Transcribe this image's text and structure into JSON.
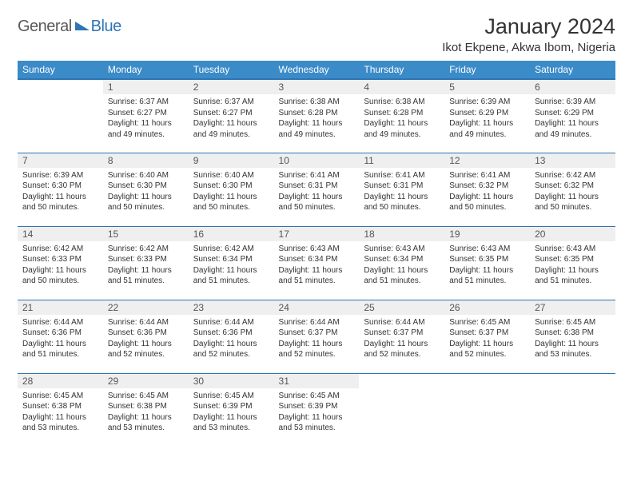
{
  "logo": {
    "general": "General",
    "blue": "Blue"
  },
  "title": "January 2024",
  "location": "Ikot Ekpene, Akwa Ibom, Nigeria",
  "colors": {
    "header_bg": "#3b8bc8",
    "header_text": "#ffffff",
    "daynum_bg": "#efefef",
    "border": "#2e75b6",
    "body_text": "#333333"
  },
  "weekdays": [
    "Sunday",
    "Monday",
    "Tuesday",
    "Wednesday",
    "Thursday",
    "Friday",
    "Saturday"
  ],
  "weeks": [
    [
      {
        "n": "",
        "sr": "",
        "ss": "",
        "dl": ""
      },
      {
        "n": "1",
        "sr": "Sunrise: 6:37 AM",
        "ss": "Sunset: 6:27 PM",
        "dl": "Daylight: 11 hours and 49 minutes."
      },
      {
        "n": "2",
        "sr": "Sunrise: 6:37 AM",
        "ss": "Sunset: 6:27 PM",
        "dl": "Daylight: 11 hours and 49 minutes."
      },
      {
        "n": "3",
        "sr": "Sunrise: 6:38 AM",
        "ss": "Sunset: 6:28 PM",
        "dl": "Daylight: 11 hours and 49 minutes."
      },
      {
        "n": "4",
        "sr": "Sunrise: 6:38 AM",
        "ss": "Sunset: 6:28 PM",
        "dl": "Daylight: 11 hours and 49 minutes."
      },
      {
        "n": "5",
        "sr": "Sunrise: 6:39 AM",
        "ss": "Sunset: 6:29 PM",
        "dl": "Daylight: 11 hours and 49 minutes."
      },
      {
        "n": "6",
        "sr": "Sunrise: 6:39 AM",
        "ss": "Sunset: 6:29 PM",
        "dl": "Daylight: 11 hours and 49 minutes."
      }
    ],
    [
      {
        "n": "7",
        "sr": "Sunrise: 6:39 AM",
        "ss": "Sunset: 6:30 PM",
        "dl": "Daylight: 11 hours and 50 minutes."
      },
      {
        "n": "8",
        "sr": "Sunrise: 6:40 AM",
        "ss": "Sunset: 6:30 PM",
        "dl": "Daylight: 11 hours and 50 minutes."
      },
      {
        "n": "9",
        "sr": "Sunrise: 6:40 AM",
        "ss": "Sunset: 6:30 PM",
        "dl": "Daylight: 11 hours and 50 minutes."
      },
      {
        "n": "10",
        "sr": "Sunrise: 6:41 AM",
        "ss": "Sunset: 6:31 PM",
        "dl": "Daylight: 11 hours and 50 minutes."
      },
      {
        "n": "11",
        "sr": "Sunrise: 6:41 AM",
        "ss": "Sunset: 6:31 PM",
        "dl": "Daylight: 11 hours and 50 minutes."
      },
      {
        "n": "12",
        "sr": "Sunrise: 6:41 AM",
        "ss": "Sunset: 6:32 PM",
        "dl": "Daylight: 11 hours and 50 minutes."
      },
      {
        "n": "13",
        "sr": "Sunrise: 6:42 AM",
        "ss": "Sunset: 6:32 PM",
        "dl": "Daylight: 11 hours and 50 minutes."
      }
    ],
    [
      {
        "n": "14",
        "sr": "Sunrise: 6:42 AM",
        "ss": "Sunset: 6:33 PM",
        "dl": "Daylight: 11 hours and 50 minutes."
      },
      {
        "n": "15",
        "sr": "Sunrise: 6:42 AM",
        "ss": "Sunset: 6:33 PM",
        "dl": "Daylight: 11 hours and 51 minutes."
      },
      {
        "n": "16",
        "sr": "Sunrise: 6:42 AM",
        "ss": "Sunset: 6:34 PM",
        "dl": "Daylight: 11 hours and 51 minutes."
      },
      {
        "n": "17",
        "sr": "Sunrise: 6:43 AM",
        "ss": "Sunset: 6:34 PM",
        "dl": "Daylight: 11 hours and 51 minutes."
      },
      {
        "n": "18",
        "sr": "Sunrise: 6:43 AM",
        "ss": "Sunset: 6:34 PM",
        "dl": "Daylight: 11 hours and 51 minutes."
      },
      {
        "n": "19",
        "sr": "Sunrise: 6:43 AM",
        "ss": "Sunset: 6:35 PM",
        "dl": "Daylight: 11 hours and 51 minutes."
      },
      {
        "n": "20",
        "sr": "Sunrise: 6:43 AM",
        "ss": "Sunset: 6:35 PM",
        "dl": "Daylight: 11 hours and 51 minutes."
      }
    ],
    [
      {
        "n": "21",
        "sr": "Sunrise: 6:44 AM",
        "ss": "Sunset: 6:36 PM",
        "dl": "Daylight: 11 hours and 51 minutes."
      },
      {
        "n": "22",
        "sr": "Sunrise: 6:44 AM",
        "ss": "Sunset: 6:36 PM",
        "dl": "Daylight: 11 hours and 52 minutes."
      },
      {
        "n": "23",
        "sr": "Sunrise: 6:44 AM",
        "ss": "Sunset: 6:36 PM",
        "dl": "Daylight: 11 hours and 52 minutes."
      },
      {
        "n": "24",
        "sr": "Sunrise: 6:44 AM",
        "ss": "Sunset: 6:37 PM",
        "dl": "Daylight: 11 hours and 52 minutes."
      },
      {
        "n": "25",
        "sr": "Sunrise: 6:44 AM",
        "ss": "Sunset: 6:37 PM",
        "dl": "Daylight: 11 hours and 52 minutes."
      },
      {
        "n": "26",
        "sr": "Sunrise: 6:45 AM",
        "ss": "Sunset: 6:37 PM",
        "dl": "Daylight: 11 hours and 52 minutes."
      },
      {
        "n": "27",
        "sr": "Sunrise: 6:45 AM",
        "ss": "Sunset: 6:38 PM",
        "dl": "Daylight: 11 hours and 53 minutes."
      }
    ],
    [
      {
        "n": "28",
        "sr": "Sunrise: 6:45 AM",
        "ss": "Sunset: 6:38 PM",
        "dl": "Daylight: 11 hours and 53 minutes."
      },
      {
        "n": "29",
        "sr": "Sunrise: 6:45 AM",
        "ss": "Sunset: 6:38 PM",
        "dl": "Daylight: 11 hours and 53 minutes."
      },
      {
        "n": "30",
        "sr": "Sunrise: 6:45 AM",
        "ss": "Sunset: 6:39 PM",
        "dl": "Daylight: 11 hours and 53 minutes."
      },
      {
        "n": "31",
        "sr": "Sunrise: 6:45 AM",
        "ss": "Sunset: 6:39 PM",
        "dl": "Daylight: 11 hours and 53 minutes."
      },
      {
        "n": "",
        "sr": "",
        "ss": "",
        "dl": ""
      },
      {
        "n": "",
        "sr": "",
        "ss": "",
        "dl": ""
      },
      {
        "n": "",
        "sr": "",
        "ss": "",
        "dl": ""
      }
    ]
  ]
}
